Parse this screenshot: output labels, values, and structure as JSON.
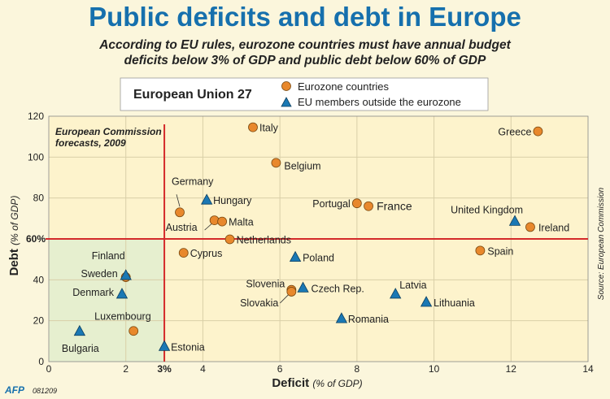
{
  "title": "Public deficits and debt in Europe",
  "subtitle_line1": "According to EU rules, eurozone countries must have annual budget",
  "subtitle_line2": "deficits below 3% of GDP and public debt below 60% of GDP",
  "legend": {
    "group": "European Union 27",
    "eurozone": "Eurozone countries",
    "outside": "EU members outside the eurozone"
  },
  "annotation_line1": "European Commission",
  "annotation_line2": "forecasts, 2009",
  "source": "Source: European Commission",
  "credit": "AFP",
  "credit_code": "081209",
  "colors": {
    "eurozone": "#e8882c",
    "outside": "#1a78b4",
    "threshold": "#d42a2a",
    "compliant_area": "#e6efcf",
    "title": "#1670ad"
  },
  "chart_data": {
    "type": "scatter",
    "xlabel": "Deficit",
    "xlabel_unit": "(% of GDP)",
    "ylabel": "Debt",
    "ylabel_unit": "(% of GDP)",
    "xlim": [
      0,
      14
    ],
    "ylim": [
      0,
      120
    ],
    "xticks": [
      0,
      2,
      4,
      6,
      8,
      10,
      12,
      14
    ],
    "yticks": [
      0,
      20,
      40,
      60,
      80,
      100,
      120
    ],
    "threshold_x": 3,
    "threshold_x_label": "3%",
    "threshold_y": 60,
    "threshold_y_label": "60%",
    "grid": true,
    "legend_position": "top-center",
    "series": [
      {
        "name": "Eurozone countries",
        "marker": "circle",
        "points": [
          {
            "label": "Italy",
            "x": 5.3,
            "y": 114.6
          },
          {
            "label": "Greece",
            "x": 12.7,
            "y": 112.6
          },
          {
            "label": "Belgium",
            "x": 5.9,
            "y": 97.2
          },
          {
            "label": "Portugal",
            "x": 8.0,
            "y": 77.4
          },
          {
            "label": "France",
            "x": 8.3,
            "y": 76.0
          },
          {
            "label": "Germany",
            "x": 3.4,
            "y": 73.0
          },
          {
            "label": "Austria",
            "x": 4.3,
            "y": 69.1
          },
          {
            "label": "Malta",
            "x": 4.5,
            "y": 68.5
          },
          {
            "label": "Ireland",
            "x": 12.5,
            "y": 65.8
          },
          {
            "label": "Netherlands",
            "x": 4.7,
            "y": 59.8
          },
          {
            "label": "Spain",
            "x": 11.2,
            "y": 54.3
          },
          {
            "label": "Cyprus",
            "x": 3.5,
            "y": 53.2
          },
          {
            "label": "Finland",
            "x": 2.0,
            "y": 41.3
          },
          {
            "label": "Slovenia",
            "x": 6.3,
            "y": 35.1
          },
          {
            "label": "Slovakia",
            "x": 6.3,
            "y": 34.2
          },
          {
            "label": "Luxembourg",
            "x": 2.2,
            "y": 15.0
          }
        ]
      },
      {
        "name": "EU members outside the eurozone",
        "marker": "triangle",
        "points": [
          {
            "label": "Hungary",
            "x": 4.1,
            "y": 79.0
          },
          {
            "label": "United Kingdom",
            "x": 12.1,
            "y": 68.6
          },
          {
            "label": "Poland",
            "x": 6.4,
            "y": 51.0
          },
          {
            "label": "Sweden",
            "x": 2.0,
            "y": 42.1
          },
          {
            "label": "Czech Rep.",
            "x": 6.6,
            "y": 36.0
          },
          {
            "label": "Denmark",
            "x": 1.9,
            "y": 33.0
          },
          {
            "label": "Latvia",
            "x": 9.0,
            "y": 33.0
          },
          {
            "label": "Lithuania",
            "x": 9.8,
            "y": 29.0
          },
          {
            "label": "Romania",
            "x": 7.6,
            "y": 21.0
          },
          {
            "label": "Bulgaria",
            "x": 0.8,
            "y": 14.8
          },
          {
            "label": "Estonia",
            "x": 3.0,
            "y": 7.4
          }
        ]
      }
    ]
  }
}
